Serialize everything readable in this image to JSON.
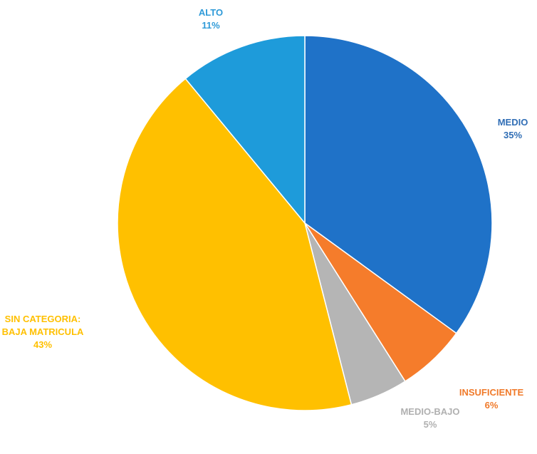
{
  "chart_data": {
    "type": "pie",
    "title": "",
    "slices": [
      {
        "label": "MEDIO",
        "value": 35,
        "value_label": "35%",
        "color": "#1F72C8"
      },
      {
        "label": "INSUFICIENTE",
        "value": 6,
        "value_label": "6%",
        "color": "#F57C2B"
      },
      {
        "label": "MEDIO-BAJO",
        "value": 5,
        "value_label": "5%",
        "color": "#B5B5B5"
      },
      {
        "label": "SIN CATEGORIA: BAJA MATRICULA",
        "label_lines": [
          "SIN CATEGORIA:",
          "BAJA MATRICULA"
        ],
        "value": 43,
        "value_label": "43%",
        "color": "#FFC000"
      },
      {
        "label": "ALTO",
        "value": 11,
        "value_label": "11%",
        "color": "#1E9BDA"
      }
    ],
    "start_angle_deg": 0,
    "direction": "clockwise",
    "legend": "none"
  }
}
